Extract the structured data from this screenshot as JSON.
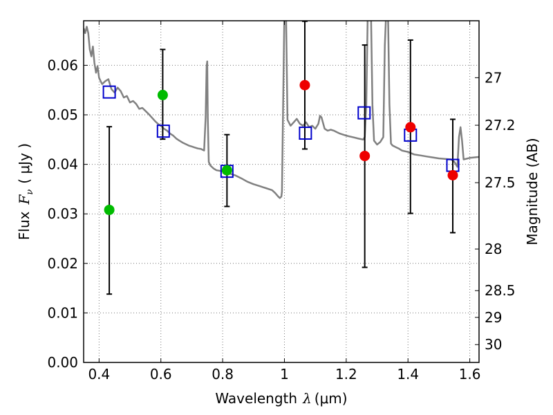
{
  "chart_data": {
    "type": "scatter",
    "title": "",
    "xlabel_text": "Wavelength",
    "xlabel_math": "λ",
    "xlabel_unit": "(μm)",
    "ylabel_text": "Flux",
    "ylabel_math": "F",
    "ylabel_math_sub": "ν",
    "ylabel_unit": "( μJy )",
    "y2label": "Magnitude (AB)",
    "xlim": [
      0.35,
      1.63
    ],
    "ylim": [
      0.0,
      0.069
    ],
    "x_ticks": [
      0.4,
      0.6,
      0.8,
      1.0,
      1.2,
      1.4,
      1.6
    ],
    "x_tick_labels": [
      "0.4",
      "0.6",
      "0.8",
      "1",
      "1.2",
      "1.4",
      "1.6"
    ],
    "y_ticks": [
      0.0,
      0.01,
      0.02,
      0.03,
      0.04,
      0.05,
      0.06
    ],
    "y_tick_labels": [
      "0.00",
      "0.01",
      "0.02",
      "0.03",
      "0.04",
      "0.05",
      "0.06"
    ],
    "y2_ticks": [
      {
        "label": "27",
        "flux": 0.0575
      },
      {
        "label": "27.2",
        "flux": 0.0479
      },
      {
        "label": "27.5",
        "flux": 0.0363
      },
      {
        "label": "28",
        "flux": 0.0229
      },
      {
        "label": "28.5",
        "flux": 0.0145
      },
      {
        "label": "29",
        "flux": 0.0091
      },
      {
        "label": "30",
        "flux": 0.0036
      }
    ],
    "grid": true,
    "series": [
      {
        "kind": "line",
        "color": "#808080",
        "x": [
          0.35,
          0.355,
          0.36,
          0.365,
          0.37,
          0.375,
          0.38,
          0.385,
          0.39,
          0.395,
          0.4,
          0.405,
          0.41,
          0.42,
          0.43,
          0.44,
          0.45,
          0.46,
          0.47,
          0.48,
          0.49,
          0.5,
          0.51,
          0.52,
          0.53,
          0.54,
          0.55,
          0.56,
          0.57,
          0.58,
          0.59,
          0.6,
          0.61,
          0.62,
          0.63,
          0.64,
          0.65,
          0.66,
          0.67,
          0.68,
          0.69,
          0.7,
          0.71,
          0.72,
          0.73,
          0.74,
          0.745,
          0.748,
          0.75,
          0.752,
          0.755,
          0.76,
          0.77,
          0.78,
          0.8,
          0.82,
          0.84,
          0.86,
          0.88,
          0.9,
          0.92,
          0.94,
          0.96,
          0.97,
          0.98,
          0.985,
          0.99,
          0.992,
          0.995,
          1.0,
          1.005,
          1.01,
          1.02,
          1.03,
          1.04,
          1.05,
          1.06,
          1.07,
          1.08,
          1.09,
          1.1,
          1.11,
          1.115,
          1.12,
          1.13,
          1.14,
          1.15,
          1.16,
          1.17,
          1.18,
          1.2,
          1.22,
          1.24,
          1.255,
          1.26,
          1.265,
          1.27,
          1.275,
          1.28,
          1.285,
          1.29,
          1.3,
          1.31,
          1.32,
          1.325,
          1.33,
          1.335,
          1.34,
          1.345,
          1.35,
          1.36,
          1.37,
          1.38,
          1.4,
          1.42,
          1.44,
          1.46,
          1.48,
          1.5,
          1.52,
          1.54,
          1.55,
          1.56,
          1.565,
          1.57,
          1.575,
          1.58,
          1.6,
          1.63
        ],
        "y": [
          0.0675,
          0.0665,
          0.0678,
          0.0665,
          0.0632,
          0.0618,
          0.0638,
          0.0605,
          0.0585,
          0.0598,
          0.0575,
          0.0568,
          0.0562,
          0.0568,
          0.0572,
          0.0552,
          0.0545,
          0.0555,
          0.0548,
          0.0535,
          0.0538,
          0.0525,
          0.0528,
          0.0522,
          0.0512,
          0.0514,
          0.0508,
          0.0502,
          0.0495,
          0.0488,
          0.0482,
          0.0478,
          0.0472,
          0.0468,
          0.0462,
          0.0458,
          0.0452,
          0.0448,
          0.0444,
          0.0441,
          0.0438,
          0.0436,
          0.0434,
          0.0432,
          0.0431,
          0.0428,
          0.0495,
          0.0598,
          0.0608,
          0.0495,
          0.0405,
          0.0398,
          0.0392,
          0.0388,
          0.0386,
          0.0382,
          0.0378,
          0.0372,
          0.0365,
          0.036,
          0.0356,
          0.0352,
          0.0348,
          0.0342,
          0.0335,
          0.0332,
          0.0335,
          0.0345,
          0.048,
          0.0715,
          0.0715,
          0.049,
          0.0478,
          0.0485,
          0.0492,
          0.0482,
          0.0478,
          0.0485,
          0.0475,
          0.0478,
          0.0472,
          0.0482,
          0.0498,
          0.0495,
          0.0472,
          0.0468,
          0.047,
          0.0468,
          0.0465,
          0.0462,
          0.0458,
          0.0455,
          0.0452,
          0.045,
          0.0455,
          0.052,
          0.0715,
          0.0715,
          0.0715,
          0.052,
          0.0448,
          0.044,
          0.0445,
          0.0455,
          0.064,
          0.0715,
          0.0715,
          0.052,
          0.0442,
          0.0438,
          0.0435,
          0.0432,
          0.0428,
          0.0425,
          0.042,
          0.0418,
          0.0416,
          0.0414,
          0.0412,
          0.0411,
          0.041,
          0.0405,
          0.0395,
          0.0455,
          0.0475,
          0.0448,
          0.041,
          0.0413,
          0.0415
        ]
      },
      {
        "kind": "scatter",
        "marker": "square",
        "color": "#0000cc",
        "x": [
          0.433,
          0.608,
          0.814,
          1.068,
          1.258,
          1.408,
          1.545
        ],
        "y": [
          0.0546,
          0.0467,
          0.0386,
          0.0463,
          0.0504,
          0.0459,
          0.0398
        ]
      },
      {
        "kind": "scatter",
        "marker": "circle",
        "color": "#00bb00",
        "x": [
          0.433,
          0.606,
          0.814
        ],
        "y": [
          0.0308,
          0.054,
          0.0388
        ]
      },
      {
        "kind": "scatter",
        "marker": "circle",
        "color": "#ee0000",
        "x": [
          1.066,
          1.26,
          1.408,
          1.545
        ],
        "y": [
          0.056,
          0.0417,
          0.0475,
          0.0378
        ]
      },
      {
        "kind": "errorbar",
        "color": "#000000",
        "points": [
          {
            "x": 0.433,
            "y": 0.0308,
            "low": 0.0138,
            "high": 0.0476
          },
          {
            "x": 0.606,
            "y": 0.054,
            "low": 0.0451,
            "high": 0.0632
          },
          {
            "x": 0.814,
            "y": 0.0388,
            "low": 0.0315,
            "high": 0.046
          },
          {
            "x": 1.066,
            "y": 0.056,
            "low": 0.0431,
            "high": 0.0689
          },
          {
            "x": 1.26,
            "y": 0.0417,
            "low": 0.0192,
            "high": 0.0641
          },
          {
            "x": 1.408,
            "y": 0.0475,
            "low": 0.0301,
            "high": 0.0651
          },
          {
            "x": 1.545,
            "y": 0.0378,
            "low": 0.0262,
            "high": 0.0491
          }
        ]
      }
    ]
  }
}
